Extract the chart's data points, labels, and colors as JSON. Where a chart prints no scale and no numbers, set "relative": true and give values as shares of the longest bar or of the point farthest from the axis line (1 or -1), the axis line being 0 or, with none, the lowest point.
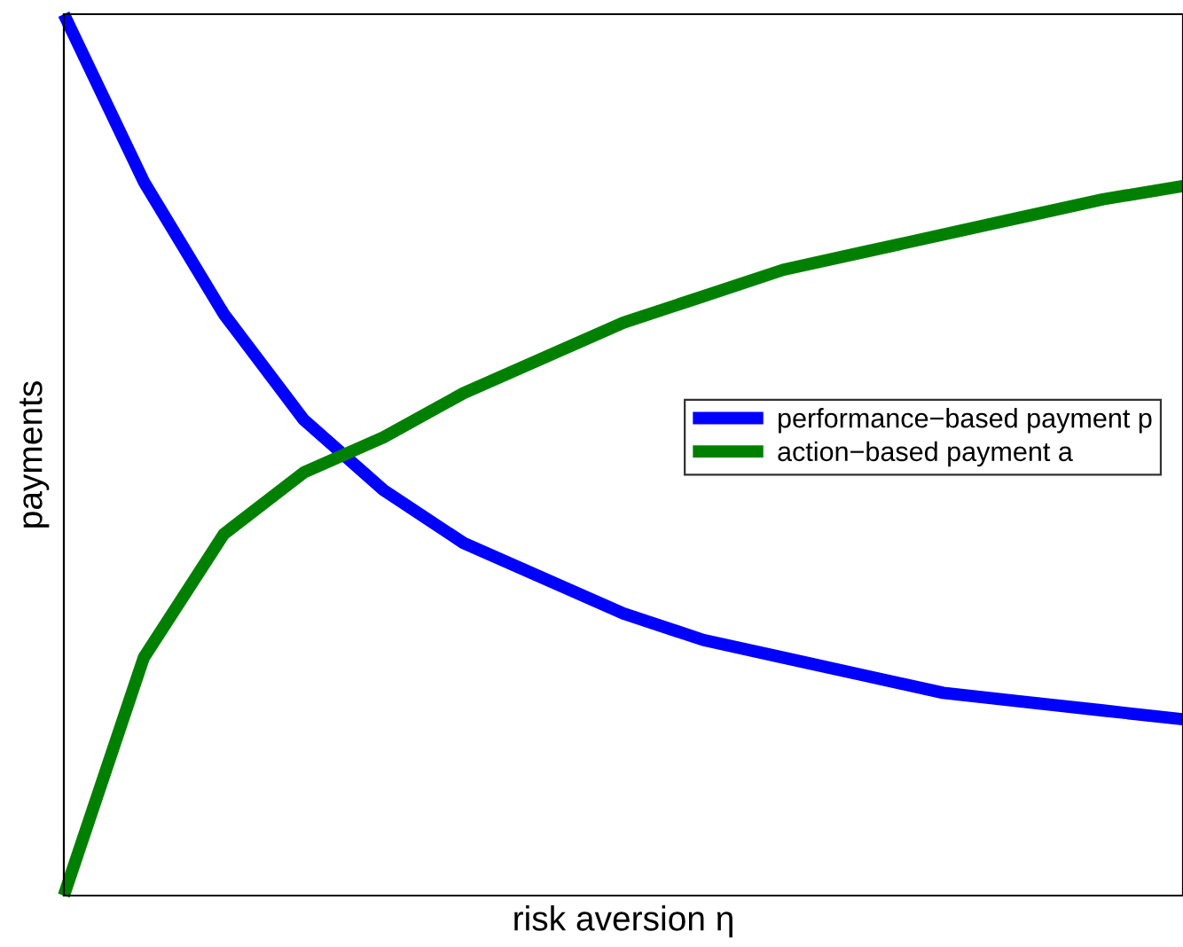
{
  "chart_data": {
    "type": "line",
    "xlabel": "risk aversion η",
    "ylabel": "payments",
    "relative": true,
    "legend": "center right",
    "marker": "none",
    "line_style": "solid",
    "categories": [
      null,
      null,
      null,
      null,
      null,
      null,
      null,
      null,
      null,
      null,
      null,
      null,
      null,
      null,
      null
    ],
    "series": [
      {
        "name": "performance−based payment p",
        "color": "#0000ff",
        "values": [
          1.0,
          0.81,
          0.66,
          0.54,
          0.46,
          0.4,
          0.36,
          0.32,
          0.29,
          0.27,
          0.25,
          0.23,
          0.22,
          0.21,
          0.2
        ]
      },
      {
        "name": "action−based payment a",
        "color": "#008000",
        "values": [
          0,
          0.27,
          0.41,
          0.48,
          0.52,
          0.57,
          0.61,
          0.65,
          0.68,
          0.71,
          0.73,
          0.75,
          0.77,
          0.79,
          0.805
        ]
      }
    ]
  }
}
